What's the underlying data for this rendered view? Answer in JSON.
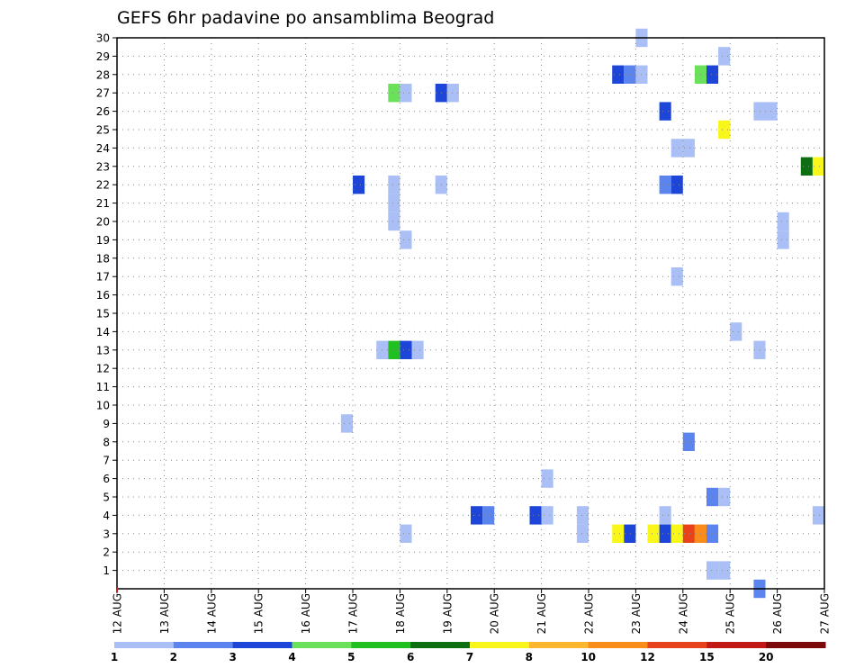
{
  "chart_data": {
    "type": "heatmap",
    "title": "GEFS 6hr padavine po ansamblima Beograd",
    "xlabel": "",
    "ylabel": "",
    "x_ticks": [
      "12 AUG",
      "13 AUG",
      "14 AUG",
      "15 AUG",
      "16 AUG",
      "17 AUG",
      "18 AUG",
      "19 AUG",
      "20 AUG",
      "21 AUG",
      "22 AUG",
      "23 AUG",
      "24 AUG",
      "25 AUG",
      "26 AUG",
      "27 AUG"
    ],
    "y_ticks": [
      "1",
      "2",
      "3",
      "4",
      "5",
      "6",
      "7",
      "8",
      "9",
      "10",
      "11",
      "12",
      "13",
      "14",
      "15",
      "16",
      "17",
      "18",
      "19",
      "20",
      "21",
      "22",
      "23",
      "24",
      "25",
      "26",
      "27",
      "28",
      "29",
      "30"
    ],
    "x_range_days": [
      12,
      27
    ],
    "y_range": [
      0,
      30
    ],
    "time_step_hours": 6,
    "grid": true,
    "legend_placement": "bottom",
    "legend": {
      "labels": [
        "1",
        "2",
        "3",
        "4",
        "5",
        "6",
        "7",
        "8",
        "10",
        "12",
        "15",
        "20"
      ],
      "colors": [
        "#aabff5",
        "#5b84ee",
        "#1d45d8",
        "#6be05b",
        "#1fc01f",
        "#0e6e12",
        "#f9f71a",
        "#fcb62f",
        "#f98c1a",
        "#e8421c",
        "#c21816",
        "#7d0a0a"
      ]
    },
    "cells": [
      {
        "member": 30,
        "x": 23.125,
        "level": 1
      },
      {
        "member": 29,
        "x": 24.875,
        "level": 1
      },
      {
        "member": 28,
        "x": 22.625,
        "level": 3
      },
      {
        "member": 28,
        "x": 22.875,
        "level": 2
      },
      {
        "member": 28,
        "x": 23.125,
        "level": 1
      },
      {
        "member": 28,
        "x": 24.375,
        "level": 4
      },
      {
        "member": 28,
        "x": 24.625,
        "level": 3
      },
      {
        "member": 27,
        "x": 17.875,
        "level": 4
      },
      {
        "member": 27,
        "x": 18.125,
        "level": 1
      },
      {
        "member": 27,
        "x": 18.875,
        "level": 3
      },
      {
        "member": 27,
        "x": 19.125,
        "level": 1
      },
      {
        "member": 26,
        "x": 23.625,
        "level": 3
      },
      {
        "member": 26,
        "x": 25.625,
        "level": 1
      },
      {
        "member": 26,
        "x": 25.875,
        "level": 1
      },
      {
        "member": 25,
        "x": 24.875,
        "level": 7
      },
      {
        "member": 24,
        "x": 23.875,
        "level": 1
      },
      {
        "member": 24,
        "x": 24.125,
        "level": 1
      },
      {
        "member": 23,
        "x": 26.625,
        "level": 6
      },
      {
        "member": 23,
        "x": 26.875,
        "level": 7
      },
      {
        "member": 22,
        "x": 17.125,
        "level": 3
      },
      {
        "member": 22,
        "x": 17.875,
        "level": 1
      },
      {
        "member": 22,
        "x": 18.875,
        "level": 1
      },
      {
        "member": 22,
        "x": 23.625,
        "level": 2
      },
      {
        "member": 22,
        "x": 23.875,
        "level": 3
      },
      {
        "member": 21,
        "x": 17.875,
        "level": 1
      },
      {
        "member": 20,
        "x": 17.875,
        "level": 1
      },
      {
        "member": 20,
        "x": 26.125,
        "level": 1
      },
      {
        "member": 19,
        "x": 18.125,
        "level": 1
      },
      {
        "member": 19,
        "x": 26.125,
        "level": 1
      },
      {
        "member": 17,
        "x": 23.875,
        "level": 1
      },
      {
        "member": 14,
        "x": 25.125,
        "level": 1
      },
      {
        "member": 13,
        "x": 17.625,
        "level": 1
      },
      {
        "member": 13,
        "x": 17.875,
        "level": 5
      },
      {
        "member": 13,
        "x": 18.125,
        "level": 3
      },
      {
        "member": 13,
        "x": 18.375,
        "level": 1
      },
      {
        "member": 13,
        "x": 25.625,
        "level": 1
      },
      {
        "member": 9,
        "x": 16.875,
        "level": 1
      },
      {
        "member": 8,
        "x": 24.125,
        "level": 2
      },
      {
        "member": 6,
        "x": 21.125,
        "level": 1
      },
      {
        "member": 5,
        "x": 24.625,
        "level": 2
      },
      {
        "member": 5,
        "x": 24.875,
        "level": 1
      },
      {
        "member": 4,
        "x": 19.625,
        "level": 3
      },
      {
        "member": 4,
        "x": 19.875,
        "level": 2
      },
      {
        "member": 4,
        "x": 20.875,
        "level": 3
      },
      {
        "member": 4,
        "x": 21.125,
        "level": 1
      },
      {
        "member": 4,
        "x": 21.875,
        "level": 1
      },
      {
        "member": 4,
        "x": 23.625,
        "level": 1
      },
      {
        "member": 4,
        "x": 26.875,
        "level": 1
      },
      {
        "member": 3,
        "x": 18.125,
        "level": 1
      },
      {
        "member": 3,
        "x": 21.875,
        "level": 1
      },
      {
        "member": 3,
        "x": 22.625,
        "level": 7
      },
      {
        "member": 3,
        "x": 22.875,
        "level": 3
      },
      {
        "member": 3,
        "x": 23.375,
        "level": 7
      },
      {
        "member": 3,
        "x": 23.625,
        "level": 3
      },
      {
        "member": 3,
        "x": 23.875,
        "level": 7
      },
      {
        "member": 3,
        "x": 24.125,
        "level": 12
      },
      {
        "member": 3,
        "x": 24.375,
        "level": 10
      },
      {
        "member": 3,
        "x": 24.625,
        "level": 2
      },
      {
        "member": 1,
        "x": 24.625,
        "level": 1
      },
      {
        "member": 1,
        "x": 24.875,
        "level": 1
      },
      {
        "member": 0,
        "x": 25.625,
        "level": 2
      }
    ]
  }
}
